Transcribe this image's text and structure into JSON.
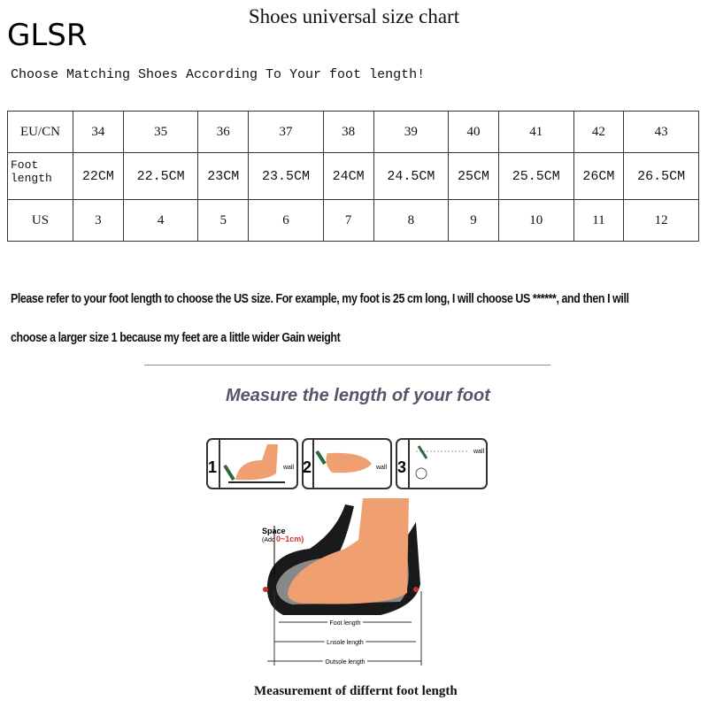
{
  "brand": "GLSR",
  "title": "Shoes universal size chart",
  "subtitle": "Choose Matching Shoes According To Your foot length!",
  "table": {
    "rows": [
      {
        "label": "EU/CN",
        "cells": [
          "34",
          "35",
          "36",
          "37",
          "38",
          "39",
          "40",
          "41",
          "42",
          "43"
        ]
      },
      {
        "label": "Foot length",
        "cells": [
          "22CM",
          "22.5CM",
          "23CM",
          "23.5CM",
          "24CM",
          "24.5CM",
          "25CM",
          "25.5CM",
          "26CM",
          "26.5CM"
        ]
      },
      {
        "label": "US",
        "cells": [
          "3",
          "4",
          "5",
          "6",
          "7",
          "8",
          "9",
          "10",
          "11",
          "12"
        ]
      }
    ]
  },
  "note": {
    "line1": "Please refer to your foot length to choose the US size. For example, my foot is 25 cm long, I will choose US ******, and then I will",
    "line2": "choose a larger size 1 because my feet are a little wider Gain weight"
  },
  "measure": {
    "heading": "Measure the length of your foot",
    "steps": [
      {
        "num": "1",
        "wall": "wall"
      },
      {
        "num": "2",
        "wall": "wall"
      },
      {
        "num": "3",
        "wall": "wall"
      }
    ],
    "space_label": "Space",
    "space_add": "(Add",
    "space_range": "0~1cm)",
    "foot_length": "Foot length",
    "insole_length": "Lnsole length",
    "outsole_length": "Outsole length",
    "caption": "Measurement of differnt foot length"
  },
  "colors": {
    "foot": "#f0a070",
    "sole": "#1a1a1a",
    "accent": "#d0302a"
  }
}
